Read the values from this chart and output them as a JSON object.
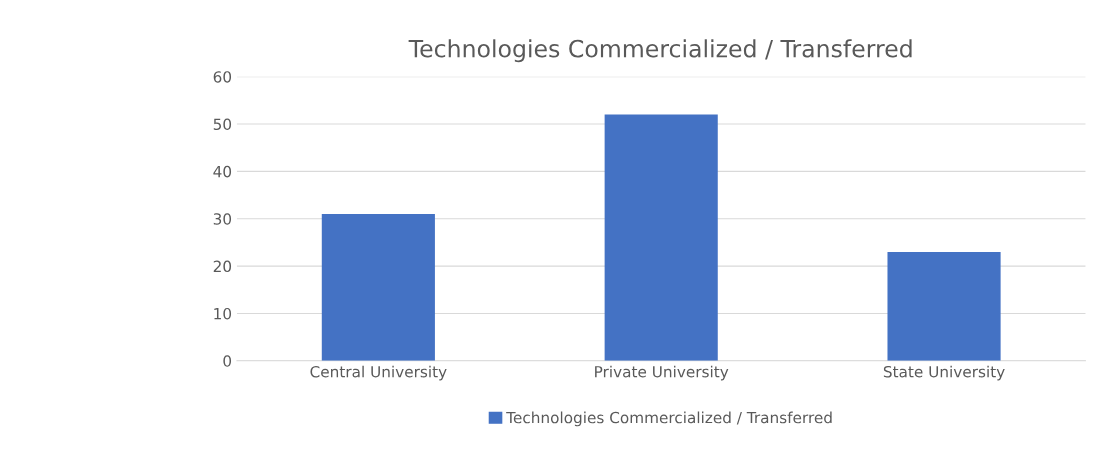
{
  "chart_data": {
    "type": "bar",
    "title": "Technologies Commercialized / Transferred",
    "categories": [
      "Central University",
      "Private University",
      "State University"
    ],
    "series": [
      {
        "name": "Technologies Commercialized / Transferred",
        "color": "#4472c4",
        "values": [
          31,
          52,
          23
        ]
      }
    ],
    "ylim": [
      0,
      60
    ],
    "yticks": [
      0,
      10,
      20,
      30,
      40,
      50,
      60
    ],
    "grid": "y",
    "legend": "bottom"
  }
}
